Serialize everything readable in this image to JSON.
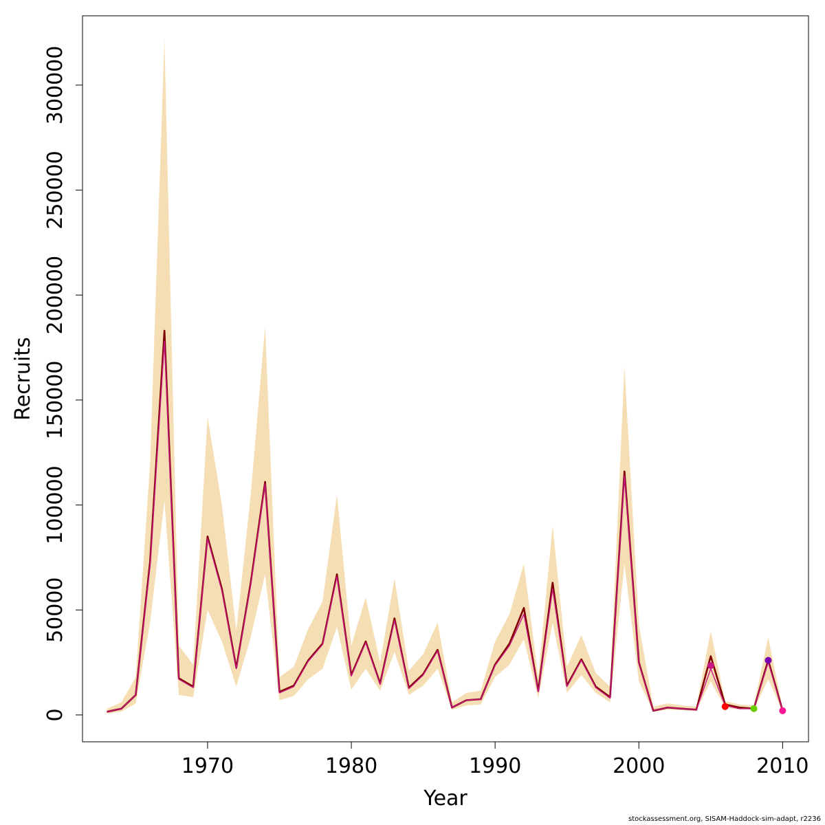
{
  "chart_data": {
    "type": "line",
    "xlabel": "Year",
    "ylabel": "Recruits",
    "xlim": [
      1961.3,
      2011.8
    ],
    "ylim": [
      -12800,
      333000
    ],
    "x_ticks": [
      1970,
      1980,
      1990,
      2000,
      2010
    ],
    "y_ticks": [
      0,
      50000,
      100000,
      150000,
      200000,
      250000,
      300000
    ],
    "x": [
      1963,
      1964,
      1965,
      1966,
      1967,
      1968,
      1969,
      1970,
      1971,
      1972,
      1973,
      1974,
      1975,
      1976,
      1977,
      1978,
      1979,
      1980,
      1981,
      1982,
      1983,
      1984,
      1985,
      1986,
      1987,
      1988,
      1989,
      1990,
      1991,
      1992,
      1993,
      1994,
      1995,
      1996,
      1997,
      1998,
      1999,
      2000,
      2001,
      2002,
      2003,
      2004,
      2005,
      2006,
      2007,
      2008,
      2009,
      2010
    ],
    "series": [
      {
        "color": "#800000",
        "values": [
          1500,
          3000,
          9500,
          73000,
          183000,
          17500,
          13500,
          85000,
          60000,
          22500,
          63000,
          111000,
          11000,
          14000,
          26000,
          34000,
          67000,
          19000,
          35000,
          15000,
          46000,
          13000,
          19500,
          31000,
          3500,
          7000,
          7500,
          24000,
          34000,
          51000,
          11500,
          63000,
          14000,
          26500,
          13500,
          8500,
          116000,
          25000,
          2000,
          3500,
          3000,
          2500,
          28000,
          5000,
          3500,
          3000,
          26000,
          2000
        ]
      },
      {
        "color": "#c71585",
        "values": [
          1500,
          3000,
          9500,
          71000,
          178000,
          17000,
          13000,
          84000,
          59000,
          22000,
          62000,
          110000,
          10500,
          13500,
          25500,
          33500,
          66000,
          18500,
          34500,
          14500,
          45000,
          12500,
          19000,
          30500,
          3500,
          7000,
          7500,
          23500,
          33000,
          48000,
          11000,
          60000,
          13500,
          26000,
          13000,
          8000,
          114000,
          24500,
          2000,
          3500,
          3000,
          2500,
          22000,
          4500,
          3000,
          3000,
          25000,
          2000
        ]
      }
    ],
    "band": {
      "color": "#f5deb3",
      "upper": [
        3000,
        6000,
        18000,
        120000,
        322000,
        33000,
        24000,
        142000,
        100000,
        40000,
        105000,
        185000,
        18000,
        23000,
        41000,
        54000,
        105000,
        33000,
        56000,
        25000,
        65000,
        21000,
        29000,
        44000,
        6000,
        10500,
        11500,
        35000,
        48000,
        72000,
        18000,
        90000,
        23000,
        38000,
        20000,
        13500,
        166000,
        43000,
        4000,
        5500,
        4500,
        4000,
        40000,
        6500,
        5000,
        4500,
        37000,
        3000
      ],
      "lower": [
        700,
        1500,
        5500,
        44000,
        102000,
        9500,
        8500,
        50000,
        35000,
        13500,
        37000,
        67000,
        7000,
        9000,
        17000,
        22000,
        42000,
        12000,
        22000,
        11500,
        30000,
        9500,
        14000,
        22000,
        2500,
        4500,
        5000,
        18000,
        24000,
        36000,
        8000,
        44000,
        10500,
        19000,
        10500,
        6000,
        72000,
        16000,
        1500,
        2500,
        2300,
        2000,
        16000,
        3500,
        2500,
        2500,
        17000,
        1500
      ]
    },
    "markers": [
      {
        "x": 2005,
        "y": 23500,
        "color": "#c71585"
      },
      {
        "x": 2006,
        "y": 4000,
        "color": "#ff0000"
      },
      {
        "x": 2008,
        "y": 3000,
        "color": "#66cc00"
      },
      {
        "x": 2009,
        "y": 26000,
        "color": "#7b00b4"
      },
      {
        "x": 2010,
        "y": 2000,
        "color": "#ff1493"
      }
    ]
  },
  "caption": "stockassessment.org, SISAM-Haddock-sim-adapt, r2236"
}
